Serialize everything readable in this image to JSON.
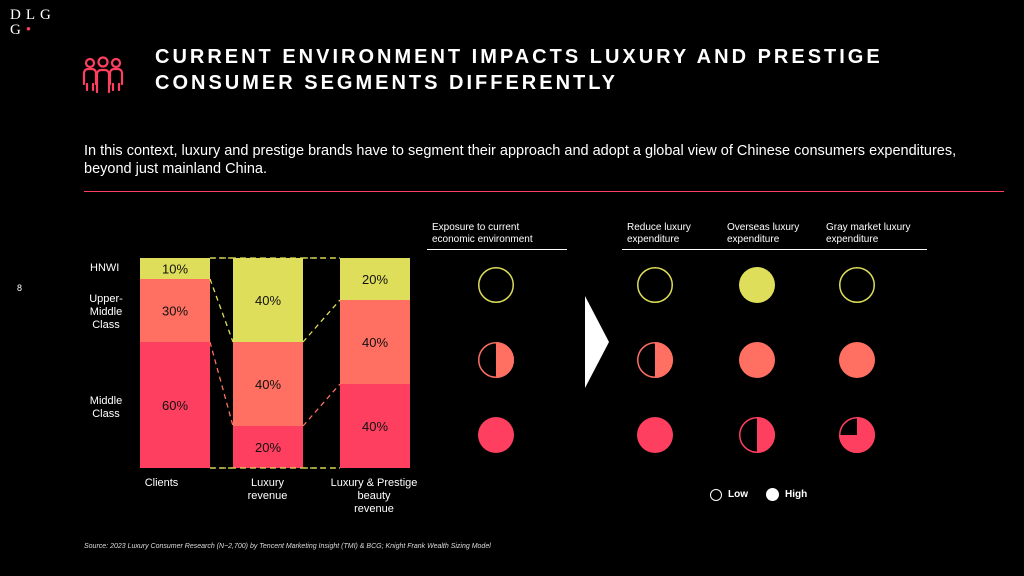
{
  "logo": {
    "line1": "DLG",
    "line2": "G"
  },
  "title": {
    "line1": "CURRENT ENVIRONMENT IMPACTS LUXURY AND PRESTIGE",
    "line2": "CONSUMER SEGMENTS DIFFERENTLY"
  },
  "subtitle": "In this context, luxury and prestige brands have to segment their approach and adopt a global view of Chinese consumers expenditures, beyond just mainland China.",
  "page_number": "8",
  "colors": {
    "hnwi": "#dede5a",
    "upper": "#ff6f62",
    "middle": "#ff3f5f",
    "accent": "#ff3f5f"
  },
  "chart_data": {
    "type": "bar",
    "stacked": true,
    "categories": [
      "Clients",
      "Luxury revenue",
      "Luxury & Prestige beauty revenue"
    ],
    "category_lines": [
      [
        "Clients"
      ],
      [
        "Luxury",
        "revenue"
      ],
      [
        "Luxury & Prestige",
        "beauty",
        "revenue"
      ]
    ],
    "segments": [
      {
        "name": "HNWI",
        "lines": [
          "HNWI"
        ]
      },
      {
        "name": "Upper-Middle Class",
        "lines": [
          "Upper-",
          "Middle",
          "Class"
        ]
      },
      {
        "name": "Middle Class",
        "lines": [
          "Middle",
          "Class"
        ]
      }
    ],
    "series": [
      {
        "name": "HNWI",
        "values": [
          10,
          40,
          20
        ],
        "labels": [
          "10%",
          "40%",
          "20%"
        ]
      },
      {
        "name": "Upper-Middle Class",
        "values": [
          30,
          40,
          40
        ],
        "labels": [
          "30%",
          "40%",
          "40%"
        ]
      },
      {
        "name": "Middle Class",
        "values": [
          60,
          20,
          40
        ],
        "labels": [
          "60%",
          "20%",
          "40%"
        ]
      }
    ],
    "ylim": [
      0,
      100
    ]
  },
  "matrix": {
    "exposure_header": [
      "Exposure to current",
      "economic environment"
    ],
    "columns": [
      {
        "lines": [
          "Reduce luxury",
          "expenditure"
        ]
      },
      {
        "lines": [
          "Overseas luxury",
          "expenditure"
        ]
      },
      {
        "lines": [
          "Gray market luxury",
          "expenditure"
        ]
      }
    ],
    "rows": [
      {
        "segment": "HNWI",
        "exposure": 0,
        "values": [
          0,
          1,
          0
        ]
      },
      {
        "segment": "Upper-Middle Class",
        "exposure": 0.5,
        "values": [
          0.5,
          1,
          1
        ]
      },
      {
        "segment": "Middle Class",
        "exposure": 1,
        "values": [
          1,
          0.5,
          0.75
        ]
      }
    ],
    "legend": {
      "low": "Low",
      "high": "High"
    }
  },
  "source": {
    "label": "Source:",
    "text": " 2023 Luxury Consumer Research (N~2,700) by Tencent Marketing Insight (TMI) & BCG; Knight Frank Wealth Sizing Model"
  }
}
